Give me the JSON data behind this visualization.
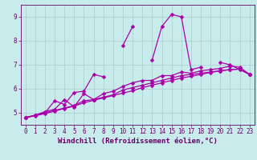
{
  "xlabel": "Windchill (Refroidissement éolien,°C)",
  "background_color": "#c8ecec",
  "line_color": "#aa00aa",
  "grid_color": "#aacccc",
  "spine_color": "#660066",
  "xlim": [
    -0.5,
    23.5
  ],
  "ylim": [
    4.5,
    9.5
  ],
  "yticks": [
    5,
    6,
    7,
    8,
    9
  ],
  "xticks": [
    0,
    1,
    2,
    3,
    4,
    5,
    6,
    7,
    8,
    9,
    10,
    11,
    12,
    13,
    14,
    15,
    16,
    17,
    18,
    19,
    20,
    21,
    22,
    23
  ],
  "series1": [
    4.8,
    4.9,
    5.0,
    5.5,
    5.35,
    5.85,
    5.9,
    6.6,
    6.5,
    null,
    7.8,
    8.6,
    null,
    7.2,
    8.6,
    9.1,
    9.0,
    6.8,
    6.9,
    null,
    7.1,
    7.0,
    6.8,
    6.6
  ],
  "series2": [
    4.8,
    4.9,
    5.05,
    5.15,
    5.55,
    5.25,
    5.8,
    5.55,
    5.8,
    5.9,
    6.1,
    6.25,
    6.35,
    6.35,
    6.55,
    6.55,
    6.7,
    6.65,
    6.75,
    6.8,
    6.85,
    6.95,
    6.9,
    6.6
  ],
  "series3": [
    4.8,
    4.9,
    5.0,
    5.1,
    5.2,
    5.3,
    5.5,
    5.55,
    5.65,
    5.75,
    5.95,
    6.05,
    6.15,
    6.25,
    6.35,
    6.45,
    6.55,
    6.6,
    6.65,
    6.7,
    6.75,
    6.8,
    6.82,
    6.6
  ],
  "series4": [
    4.8,
    4.87,
    4.97,
    5.07,
    5.18,
    5.28,
    5.42,
    5.52,
    5.62,
    5.72,
    5.82,
    5.92,
    6.05,
    6.15,
    6.25,
    6.35,
    6.45,
    6.52,
    6.6,
    6.68,
    6.75,
    6.8,
    6.82,
    6.6
  ],
  "marker": "D",
  "marker_size": 2.5,
  "linewidth": 0.9,
  "label_fontsize": 6.5,
  "tick_fontsize": 5.5
}
